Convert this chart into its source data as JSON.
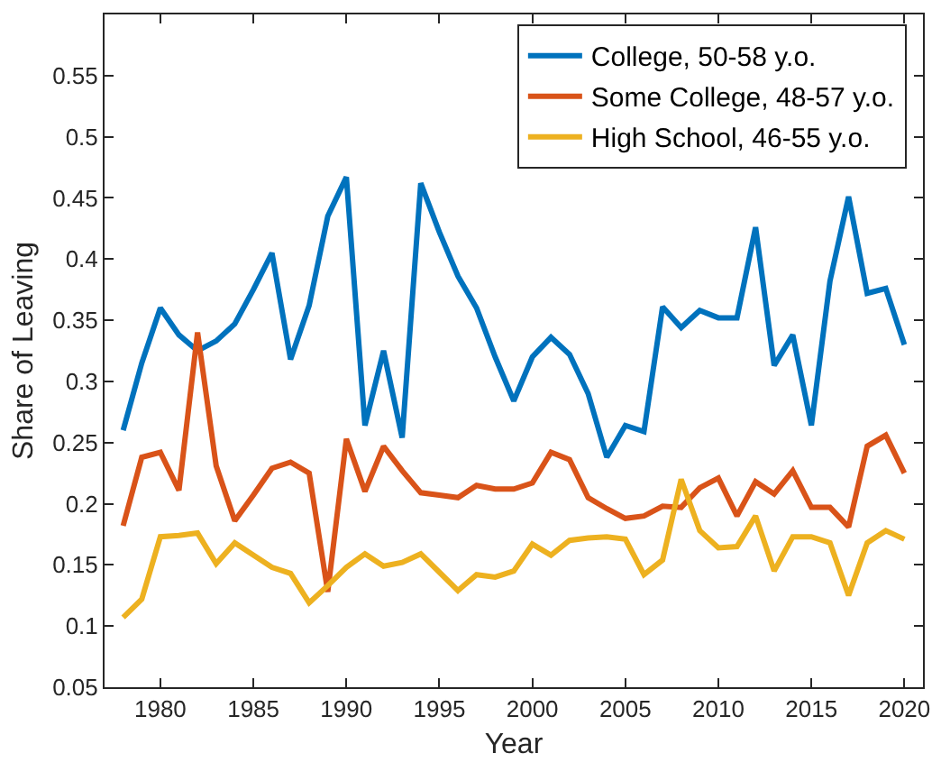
{
  "chart_data": {
    "type": "line",
    "xlabel": "Year",
    "ylabel": "Share of Leaving",
    "x": [
      1978,
      1979,
      1980,
      1981,
      1982,
      1983,
      1984,
      1985,
      1986,
      1987,
      1988,
      1989,
      1990,
      1991,
      1992,
      1993,
      1994,
      1995,
      1996,
      1997,
      1998,
      1999,
      2000,
      2001,
      2002,
      2003,
      2004,
      2005,
      2006,
      2007,
      2008,
      2009,
      2010,
      2011,
      2012,
      2013,
      2014,
      2015,
      2016,
      2017,
      2018,
      2019,
      2020
    ],
    "series": [
      {
        "name": "College, 50-58 y.o.",
        "color": "#0072bd",
        "values": [
          0.26,
          0.315,
          0.36,
          0.338,
          0.325,
          0.333,
          0.347,
          0.375,
          0.405,
          0.318,
          0.362,
          0.435,
          0.467,
          0.264,
          0.325,
          0.254,
          0.462,
          0.422,
          0.386,
          0.36,
          0.32,
          0.284,
          0.32,
          0.336,
          0.322,
          0.29,
          0.238,
          0.264,
          0.259,
          0.361,
          0.344,
          0.358,
          0.352,
          0.352,
          0.426,
          0.313,
          0.338,
          0.264,
          0.382,
          0.451,
          0.372,
          0.376,
          0.33
        ]
      },
      {
        "name": "Some College, 48-57 y.o.",
        "color": "#d95319",
        "values": [
          0.182,
          0.238,
          0.242,
          0.211,
          0.34,
          0.231,
          0.186,
          0.207,
          0.229,
          0.234,
          0.225,
          0.128,
          0.253,
          0.21,
          0.247,
          0.227,
          0.209,
          0.207,
          0.205,
          0.215,
          0.212,
          0.212,
          0.217,
          0.242,
          0.236,
          0.205,
          0.196,
          0.188,
          0.19,
          0.198,
          0.197,
          0.213,
          0.221,
          0.19,
          0.218,
          0.208,
          0.227,
          0.197,
          0.197,
          0.181,
          0.247,
          0.256,
          0.225
        ]
      },
      {
        "name": "High School, 46-55 y.o.",
        "color": "#edb120",
        "values": [
          0.107,
          0.122,
          0.173,
          0.174,
          0.176,
          0.151,
          0.168,
          0.158,
          0.148,
          0.143,
          0.119,
          0.133,
          0.148,
          0.159,
          0.149,
          0.152,
          0.159,
          0.144,
          0.129,
          0.142,
          0.14,
          0.145,
          0.167,
          0.158,
          0.17,
          0.172,
          0.173,
          0.171,
          0.142,
          0.154,
          0.22,
          0.178,
          0.164,
          0.165,
          0.19,
          0.145,
          0.173,
          0.173,
          0.168,
          0.125,
          0.168,
          0.178,
          0.171
        ]
      }
    ],
    "xlim": [
      1977,
      2021
    ],
    "xticks": [
      1980,
      1985,
      1990,
      1995,
      2000,
      2005,
      2010,
      2015,
      2020
    ],
    "ylim": [
      0.05,
      0.6
    ],
    "yticks": [
      0.05,
      0.1,
      0.15,
      0.2,
      0.25,
      0.3,
      0.35,
      0.4,
      0.45,
      0.5,
      0.55
    ],
    "grid": false,
    "legend": "top right",
    "marker": "none",
    "line_style": "solid"
  }
}
